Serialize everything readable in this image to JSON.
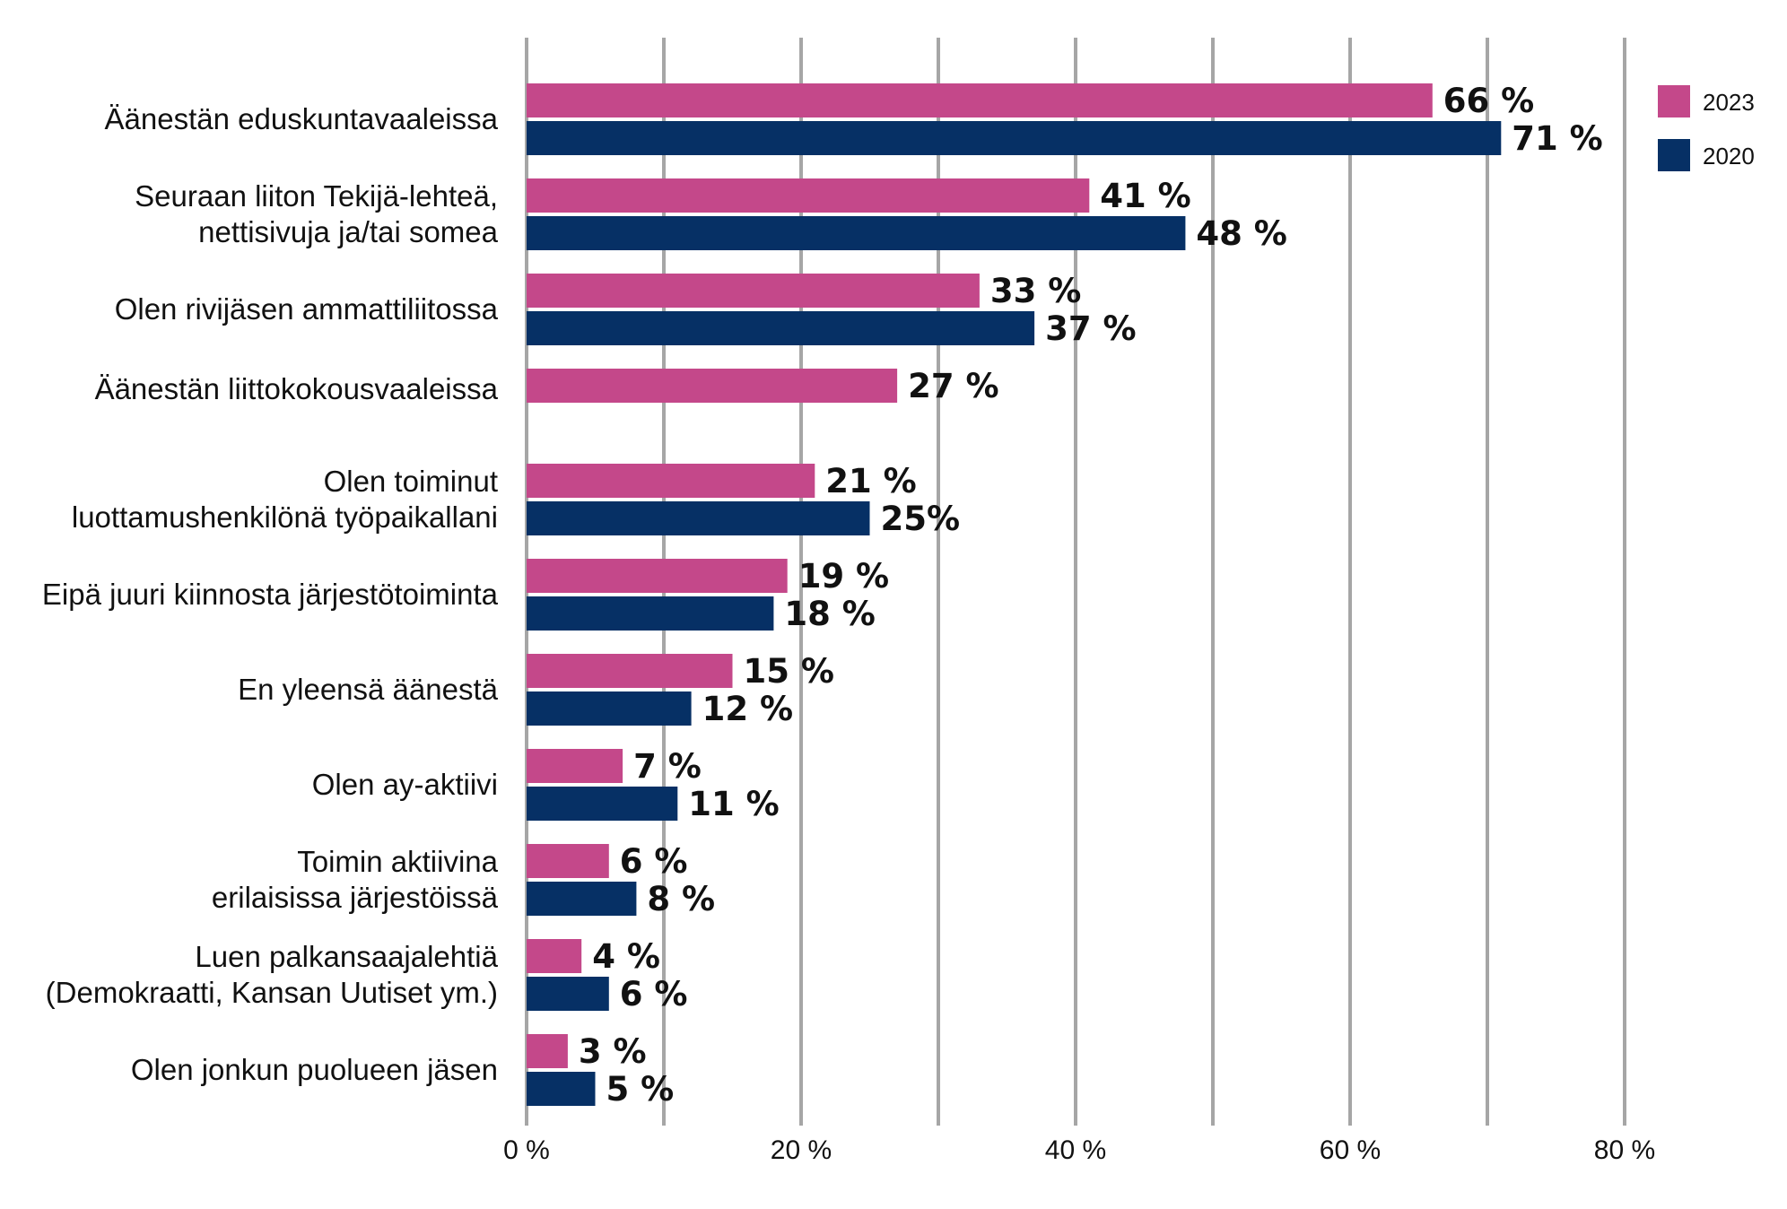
{
  "chart_data": {
    "type": "bar",
    "orientation": "horizontal",
    "title": "",
    "xlabel": "",
    "ylabel": "",
    "xlim": [
      0,
      80
    ],
    "ticks": [
      0,
      20,
      40,
      60,
      80
    ],
    "tick_labels": [
      "0 %",
      "20 %",
      "40 %",
      "60 %",
      "80 %"
    ],
    "grid": true,
    "legend_position": "top-right",
    "categories": [
      [
        "Äänestän eduskuntavaaleissa"
      ],
      [
        "Seuraan liiton Tekijä-lehteä,",
        "nettisivuja ja/tai somea"
      ],
      [
        "Olen rivijäsen ammattiliitossa"
      ],
      [
        "Äänestän liittokokousvaaleissa"
      ],
      [
        "Olen toiminut",
        "luottamushenkilönä työpaikallani"
      ],
      [
        "Eipä juuri kiinnosta järjestötoiminta"
      ],
      [
        "En yleensä äänestä"
      ],
      [
        "Olen ay-aktiivi"
      ],
      [
        "Toimin aktiivina",
        "erilaisissa järjestöissä"
      ],
      [
        "Luen palkansaajalehtiä",
        "(Demokraatti, Kansan Uutiset ym.)"
      ],
      [
        "Olen jonkun puolueen jäsen"
      ]
    ],
    "series": [
      {
        "name": "2023",
        "color": "#c4488a",
        "values": [
          66,
          41,
          33,
          27,
          21,
          19,
          15,
          7,
          6,
          4,
          3
        ],
        "labels": [
          "66 %",
          "41 %",
          "33 %",
          "27 %",
          "21 %",
          "19 %",
          "15 %",
          "7 %",
          "6 %",
          "4 %",
          "3 %"
        ]
      },
      {
        "name": "2020",
        "color": "#063065",
        "values": [
          71,
          48,
          37,
          null,
          25,
          18,
          12,
          11,
          8,
          6,
          5
        ],
        "labels": [
          "71 %",
          "48 %",
          "37 %",
          null,
          "25%",
          "18 %",
          "12 %",
          "11 %",
          "8 %",
          "6 %",
          "5 %"
        ]
      }
    ]
  }
}
